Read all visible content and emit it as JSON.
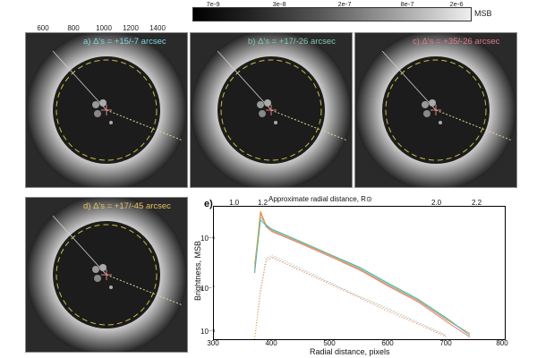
{
  "top_axis": {
    "ticks": [
      "600",
      "800",
      "1000",
      "1200",
      "1400"
    ]
  },
  "colorbar": {
    "ticks": [
      "7e-9",
      "3e-8",
      "2e-7",
      "8e-7",
      "2e-6"
    ],
    "unit": "MSB"
  },
  "panels": [
    {
      "label": "a) Δ's = +15/-7 arcsec",
      "color": "#7fd6e0"
    },
    {
      "label": "b) Δ's = +17/-26 arcsec",
      "color": "#7fc9b0"
    },
    {
      "label": "c) Δ's = +35/-26 arcsec",
      "color": "#e07a8a"
    },
    {
      "label": "d) Δ's = +17/-45 arcsec",
      "color": "#e8c060"
    }
  ],
  "plot": {
    "panel_letter": "e)",
    "top_axis_label": "Approximate radial distance, R⊙",
    "top_ticks": [
      "1.0",
      "1.2",
      "2.0",
      "2.2"
    ],
    "x_label": "Radial distance, pixels",
    "y_label": "Brightness, MSB",
    "x_ticks": [
      "300",
      "400",
      "500",
      "600",
      "700",
      "800"
    ],
    "y_ticks": [
      "10⁻⁶",
      "10⁻⁷",
      "10⁻⁸"
    ]
  },
  "chart_data": {
    "type": "line",
    "title": "",
    "xlabel": "Radial distance, pixels",
    "ylabel": "Brightness, MSB",
    "xlim": [
      300,
      800
    ],
    "ylim": [
      1e-08,
      4e-06
    ],
    "y_scale": "log",
    "x": [
      370,
      380,
      390,
      400,
      450,
      500,
      550,
      600,
      650,
      700,
      740
    ],
    "series": [
      {
        "color": "#7fd6e0",
        "style": "solid",
        "values": [
          3e-07,
          2.5e-06,
          1.8e-06,
          1.4e-06,
          8e-07,
          4.5e-07,
          2.5e-07,
          1.2e-07,
          6e-08,
          2.5e-08,
          1.2e-08
        ]
      },
      {
        "color": "#e07a8a",
        "style": "solid",
        "values": [
          2e-07,
          3e-06,
          1.6e-06,
          1.3e-06,
          7.5e-07,
          4.2e-07,
          2.3e-07,
          1.1e-07,
          5.5e-08,
          2.2e-08,
          1.1e-08
        ]
      },
      {
        "color": "#e8a040",
        "style": "solid",
        "values": [
          2.5e-07,
          3.3e-06,
          1.7e-06,
          1.35e-06,
          7.8e-07,
          4.4e-07,
          2.4e-07,
          1.15e-07,
          5.8e-08,
          2.4e-08,
          1.3e-08
        ]
      },
      {
        "color": "#4cb8a8",
        "style": "solid",
        "values": [
          2e-07,
          2.2e-06,
          1.7e-06,
          1.45e-06,
          8.2e-07,
          4.6e-07,
          2.6e-07,
          1.25e-07,
          6.2e-08,
          2.6e-08,
          1.2e-08
        ]
      },
      {
        "color": "#7fd6e0",
        "style": "dotted",
        "values": [
          1e-08,
          1e-07,
          4e-07,
          4.5e-07,
          2.5e-07,
          1.3e-07,
          7e-08,
          4e-08,
          2.2e-08,
          1.2e-08,
          null
        ]
      },
      {
        "color": "#e07a8a",
        "style": "dotted",
        "values": [
          1e-08,
          8e-08,
          3.5e-07,
          4e-07,
          2.2e-07,
          1.2e-07,
          6.5e-08,
          3.5e-08,
          2e-08,
          1.1e-08,
          null
        ]
      },
      {
        "color": "#e8a040",
        "style": "dotted",
        "values": [
          1e-08,
          9e-08,
          3.8e-07,
          4.2e-07,
          2.3e-07,
          1.25e-07,
          6.8e-08,
          3.8e-08,
          2.1e-08,
          1.15e-08,
          null
        ]
      }
    ]
  }
}
